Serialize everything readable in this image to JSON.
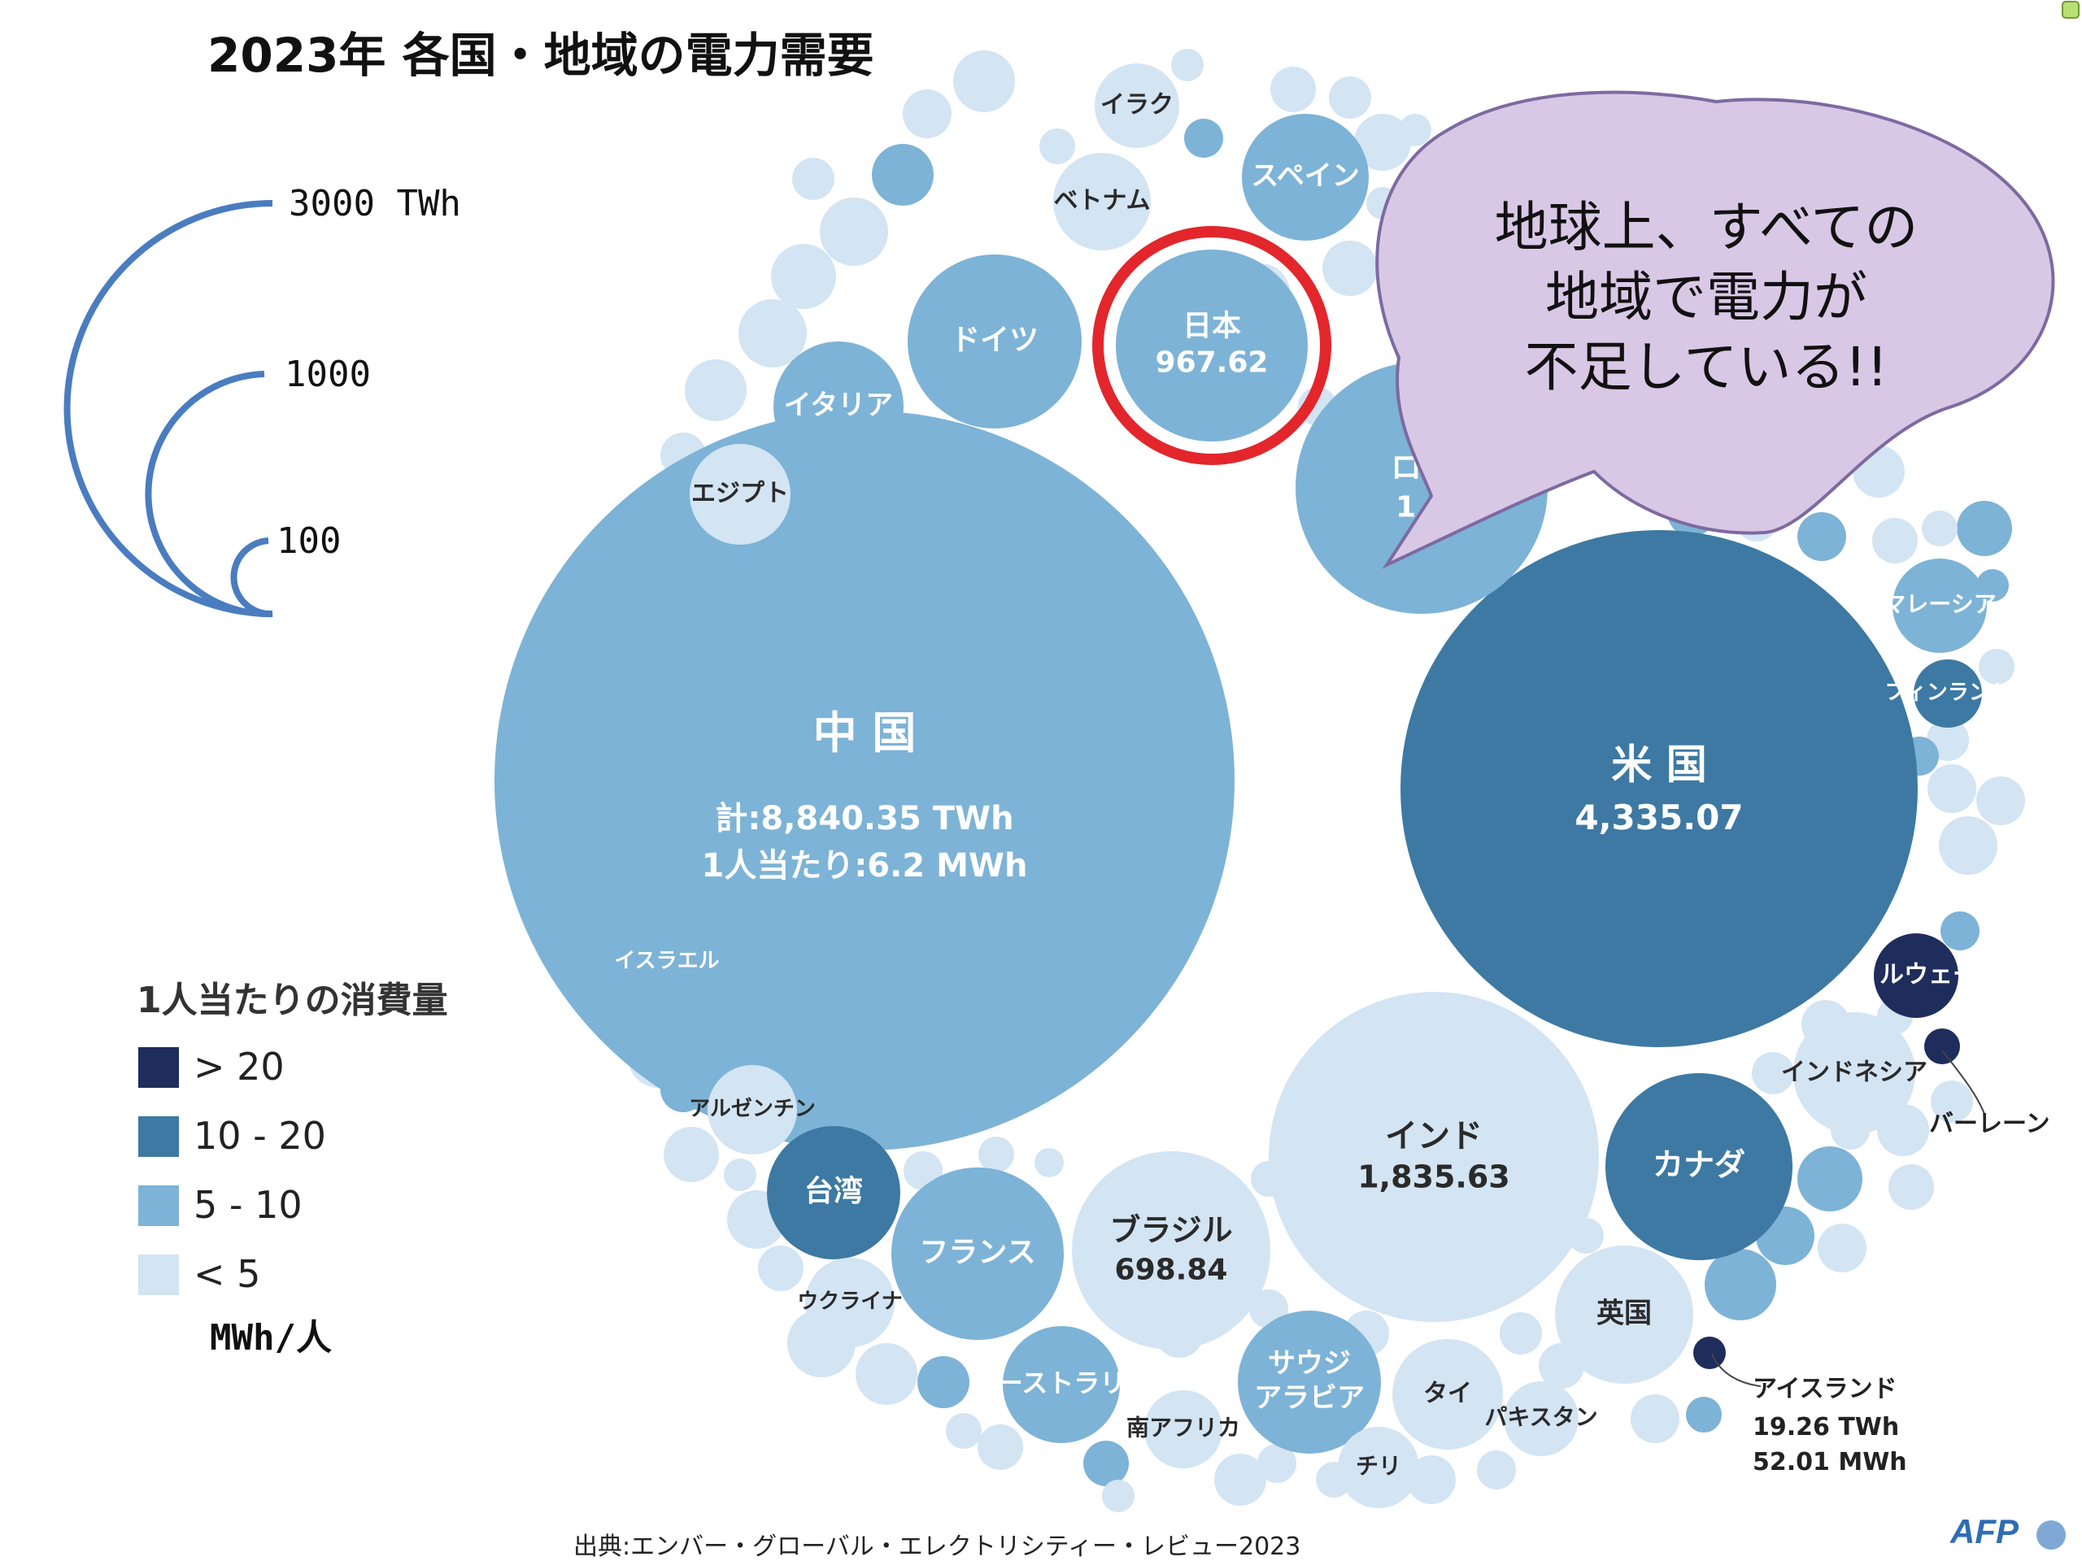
{
  "page": {
    "title": "2023年 各国・地域の電力需要",
    "source": "出典:エンバー・グローバル・エレクトリシティー・レビュー2023"
  },
  "size_scale": {
    "labels": [
      "3000 TWh",
      "1000",
      "100"
    ],
    "values": [
      3000,
      1000,
      100
    ]
  },
  "legend": {
    "title": "1人当たりの消費量",
    "items": [
      {
        "label": "> 20",
        "color": "#1f2d5c"
      },
      {
        "label": "10 - 20",
        "color": "#3d79a3"
      },
      {
        "label": "5 - 10",
        "color": "#7db3d6"
      },
      {
        "label": "< 5",
        "color": "#d3e4f3"
      }
    ],
    "unit": "MWh/人"
  },
  "callout": {
    "lines": [
      "地球上、すべての",
      "地域で電力が",
      "不足している!!"
    ],
    "fill": "#d8c8e6"
  },
  "highlight": {
    "target": "日本",
    "color": "#e3262c"
  },
  "logo": {
    "text": "AFP"
  },
  "chart_data": {
    "type": "bubble",
    "size_measure": "TWh",
    "color_measure": "MWh/人",
    "bubbles": [
      {
        "name": "中国",
        "label": "中 国",
        "value": 8840.35,
        "value_label": "計:8,840.35 TWh",
        "per_capita_label": "1人当たり:6.2 MWh",
        "per_capita": 6.2,
        "tier": "5 - 10"
      },
      {
        "name": "米国",
        "label": "米 国",
        "value": 4335.07,
        "value_label": "4,335.07",
        "tier": "10 - 20"
      },
      {
        "name": "インド",
        "label": "インド",
        "value": 1835.63,
        "value_label": "1,835.63",
        "tier": "< 5"
      },
      {
        "name": "ロシア",
        "label": "ロシ",
        "value_label": "1,1",
        "tier": "5 - 10"
      },
      {
        "name": "日本",
        "label": "日本",
        "value": 967.62,
        "value_label": "967.62",
        "tier": "5 - 10"
      },
      {
        "name": "ブラジル",
        "label": "ブラジル",
        "value": 698.84,
        "value_label": "698.84",
        "tier": "< 5"
      },
      {
        "name": "カナダ",
        "label": "カナダ",
        "tier": "10 - 20"
      },
      {
        "name": "ドイツ",
        "label": "ドイツ",
        "tier": "5 - 10"
      },
      {
        "name": "フランス",
        "label": "フランス",
        "tier": "5 - 10"
      },
      {
        "name": "台湾",
        "label": "台湾",
        "tier": "10 - 20"
      },
      {
        "name": "サウジアラビア",
        "label": "サウジ\nアラビア",
        "tier": "5 - 10"
      },
      {
        "name": "英国",
        "label": "英国",
        "tier": "< 5"
      },
      {
        "name": "イタリア",
        "label": "イタリア",
        "tier": "5 - 10"
      },
      {
        "name": "スペイン",
        "label": "スペイン",
        "tier": "5 - 10"
      },
      {
        "name": "インドネシア",
        "label": "インドネシア",
        "tier": "< 5"
      },
      {
        "name": "オーストラリア",
        "label": "オーストラリア",
        "tier": "5 - 10"
      },
      {
        "name": "マレーシア",
        "label": "マレーシア",
        "tier": "5 - 10"
      },
      {
        "name": "フィンランド",
        "label": "フィンランド",
        "tier": "10 - 20"
      },
      {
        "name": "ノルウェー",
        "label": "ノルウェー",
        "tier": "> 20"
      },
      {
        "name": "タイ",
        "label": "タイ",
        "tier": "< 5"
      },
      {
        "name": "パキスタン",
        "label": "パキスタン",
        "tier": "< 5"
      },
      {
        "name": "エジプト",
        "label": "エジプト",
        "tier": "< 5"
      },
      {
        "name": "イラク",
        "label": "イラク",
        "tier": "< 5"
      },
      {
        "name": "ベトナム",
        "label": "ベトナム",
        "tier": "< 5"
      },
      {
        "name": "アルゼンチン",
        "label": "アルゼンチン",
        "tier": "< 5"
      },
      {
        "name": "ウクライナ",
        "label": "ウクライナ",
        "tier": "< 5"
      },
      {
        "name": "南アフリカ",
        "label": "南アフリカ",
        "tier": "< 5"
      },
      {
        "name": "チリ",
        "label": "チリ",
        "tier": "< 5"
      },
      {
        "name": "イスラエル",
        "label": "イスラエル",
        "tier": "5 - 10"
      },
      {
        "name": "バーレーン",
        "label": "バーレーン",
        "tier": "> 20"
      },
      {
        "name": "アイスランド",
        "label": "アイスランド",
        "value": 19.26,
        "value_label": "19.26 TWh",
        "per_capita": 52.01,
        "per_capita_label": "52.01 MWh",
        "tier": "> 20"
      }
    ]
  }
}
